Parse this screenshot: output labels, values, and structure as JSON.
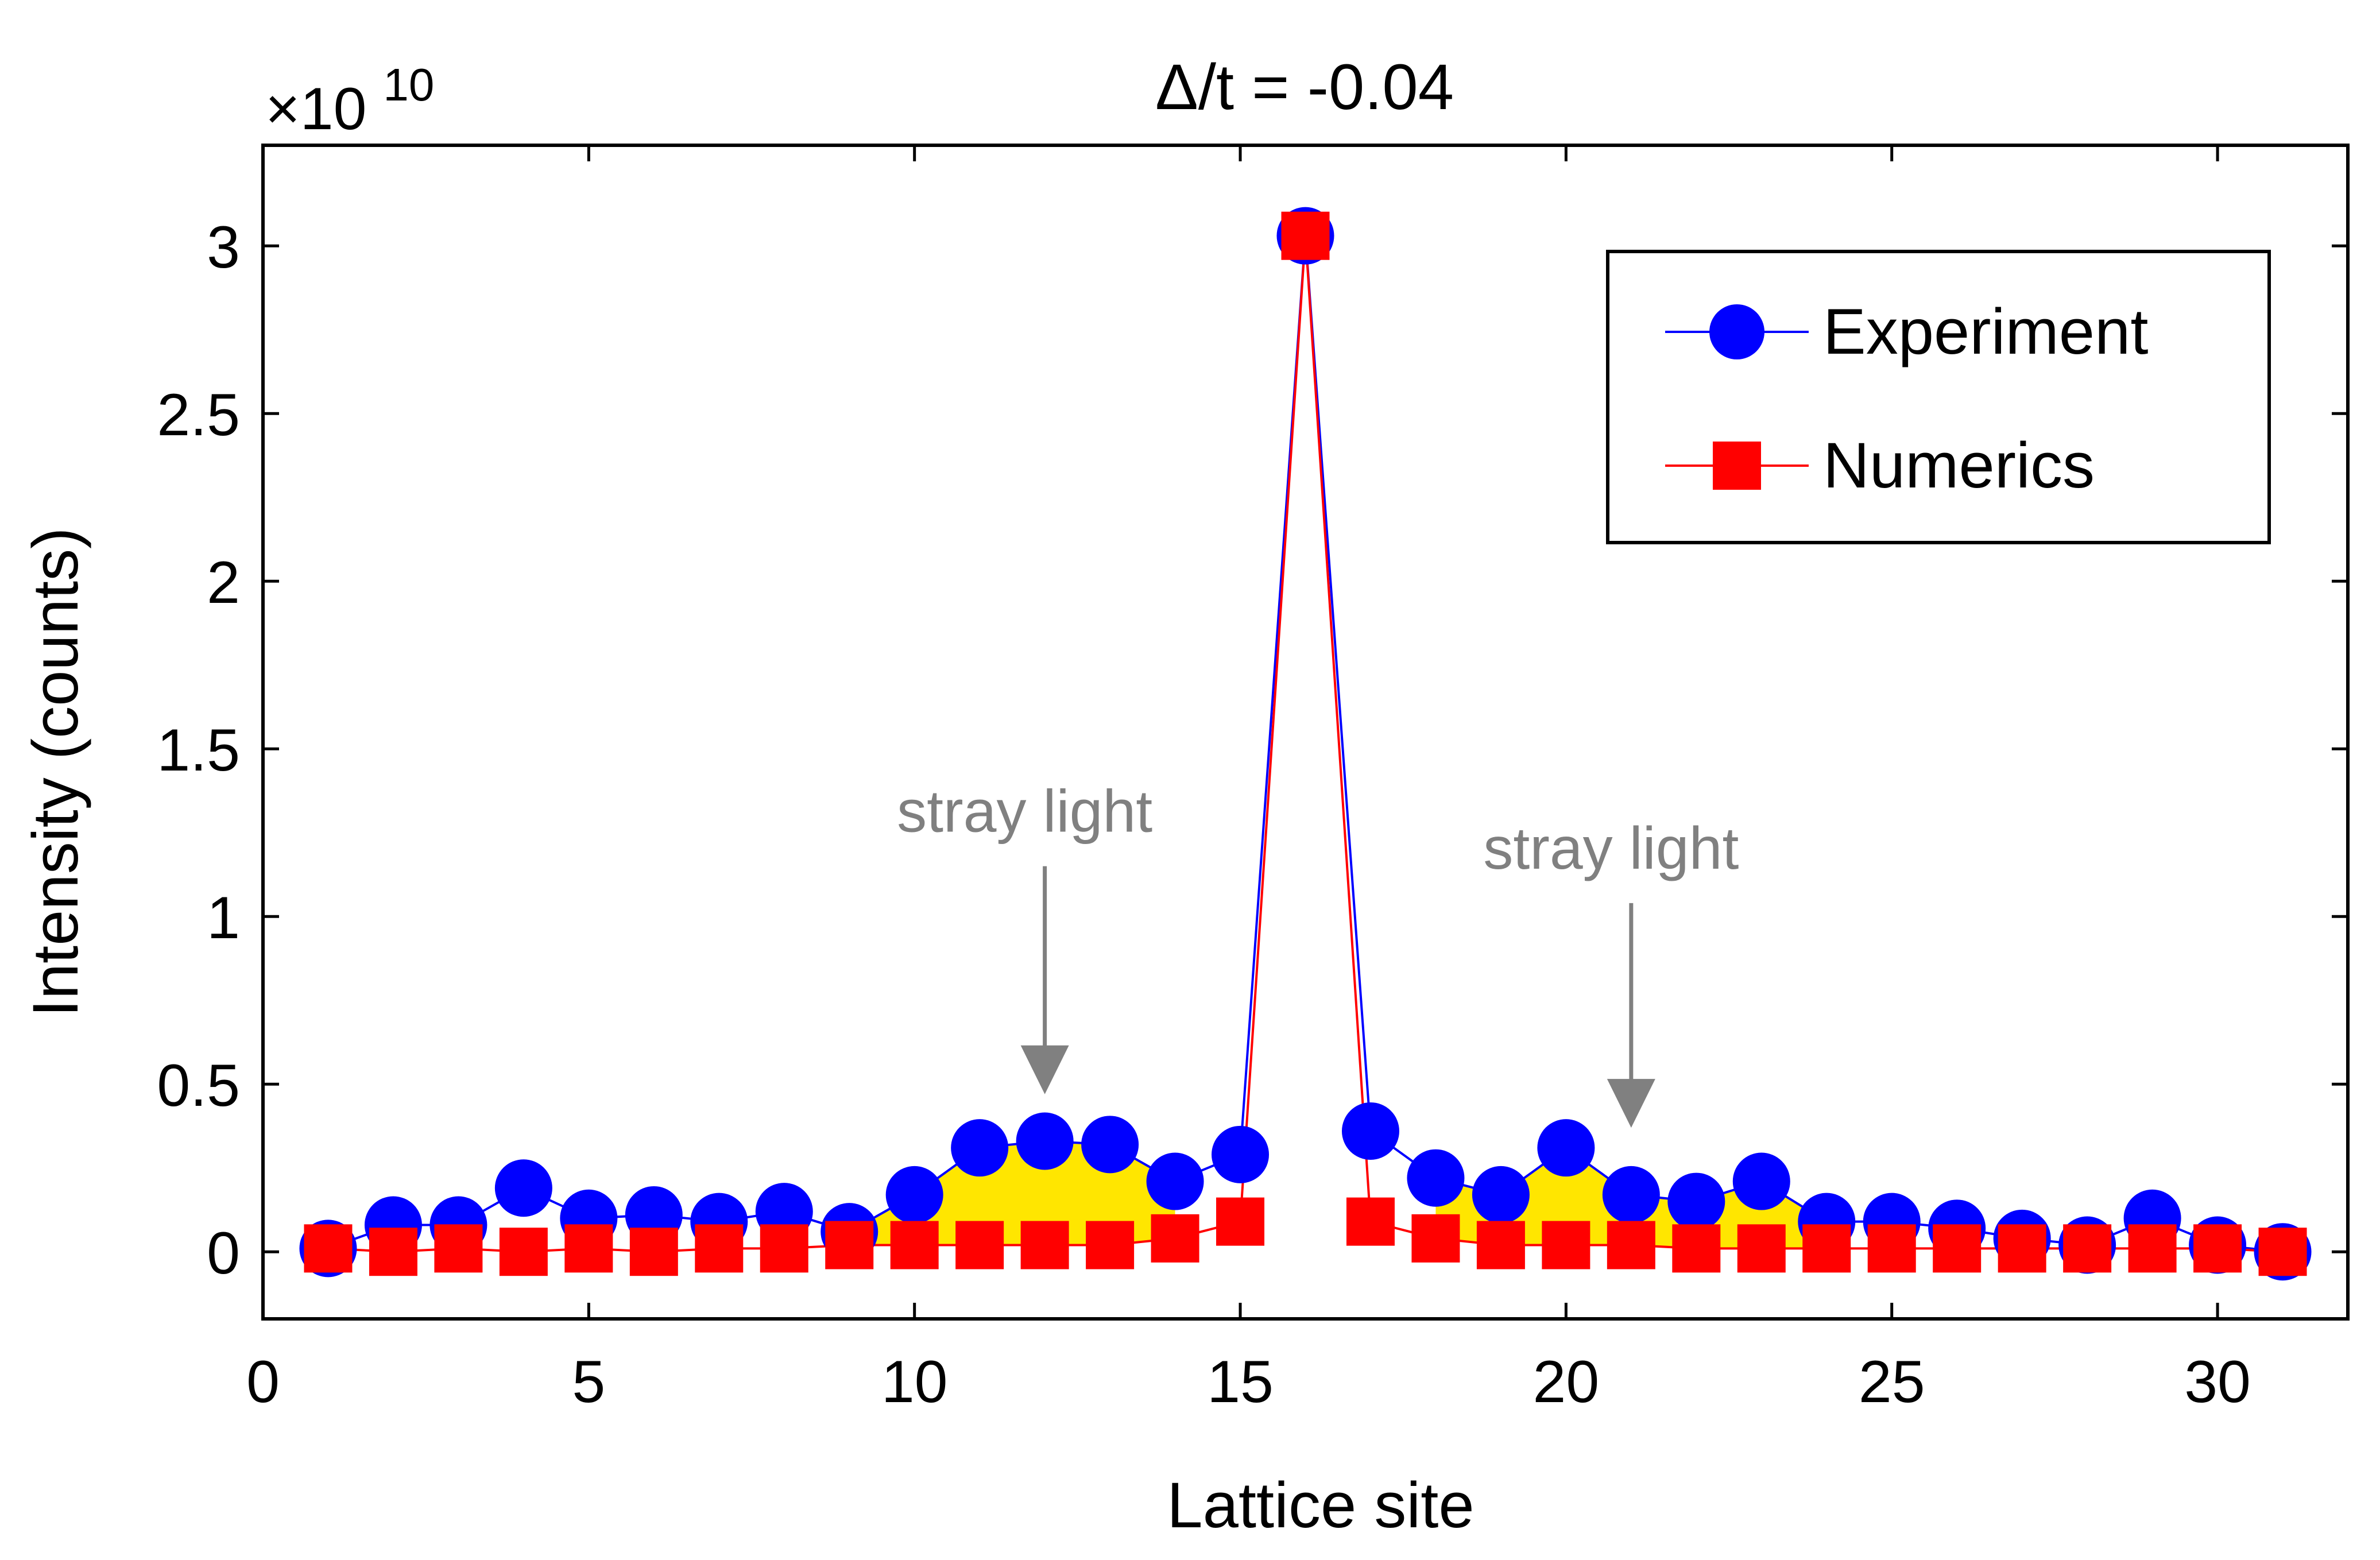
{
  "chart_data": {
    "type": "line",
    "title": "Δ/t = -0.04",
    "xlabel": "Lattice site",
    "ylabel": "Intensity (counts)",
    "y_multiplier_label": {
      "base": "×10",
      "exponent": "10"
    },
    "xlim": [
      0,
      32
    ],
    "ylim": [
      -0.2,
      3.3
    ],
    "x_ticks": [
      0,
      5,
      10,
      15,
      20,
      25,
      30
    ],
    "x_tick_labels": [
      "0",
      "5",
      "10",
      "15",
      "20",
      "25",
      "30"
    ],
    "y_ticks": [
      0,
      0.5,
      1,
      1.5,
      2,
      2.5,
      3
    ],
    "y_tick_labels": [
      "0",
      "0.5",
      "1",
      "1.5",
      "2",
      "2.5",
      "3"
    ],
    "x": [
      1,
      2,
      3,
      4,
      5,
      6,
      7,
      8,
      9,
      10,
      11,
      12,
      13,
      14,
      15,
      16,
      17,
      18,
      19,
      20,
      21,
      22,
      23,
      24,
      25,
      26,
      27,
      28,
      29,
      30,
      31
    ],
    "series": [
      {
        "name": "Experiment",
        "color": "#0000ff",
        "marker": "circle",
        "values": [
          0.01,
          0.08,
          0.08,
          0.19,
          0.1,
          0.11,
          0.09,
          0.12,
          0.06,
          0.17,
          0.31,
          0.33,
          0.32,
          0.21,
          0.29,
          3.03,
          0.36,
          0.22,
          0.17,
          0.31,
          0.17,
          0.15,
          0.21,
          0.09,
          0.09,
          0.07,
          0.04,
          0.02,
          0.1,
          0.02,
          0.0
        ]
      },
      {
        "name": "Numerics",
        "color": "#ff0000",
        "marker": "square",
        "values": [
          0.01,
          0.0,
          0.01,
          0.0,
          0.01,
          0.0,
          0.01,
          0.01,
          0.02,
          0.02,
          0.02,
          0.02,
          0.02,
          0.04,
          0.09,
          3.03,
          0.09,
          0.04,
          0.02,
          0.02,
          0.02,
          0.01,
          0.01,
          0.01,
          0.01,
          0.01,
          0.01,
          0.01,
          0.01,
          0.01,
          0.0
        ]
      }
    ],
    "shaded_regions": [
      {
        "from_x": 9,
        "to_x": 14,
        "color": "#ffe600"
      },
      {
        "from_x": 18,
        "to_x": 24,
        "color": "#ffe600"
      }
    ],
    "annotations": [
      {
        "text": "stray light",
        "arrow_x": 12,
        "arrow_from_y": 1.15,
        "arrow_to_y": 0.47,
        "color": "#808080"
      },
      {
        "text": "stray light",
        "arrow_x": 21,
        "arrow_from_y": 1.04,
        "arrow_to_y": 0.37,
        "color": "#808080"
      }
    ],
    "legend": {
      "position": "top-right",
      "entries": [
        "Experiment",
        "Numerics"
      ]
    }
  }
}
